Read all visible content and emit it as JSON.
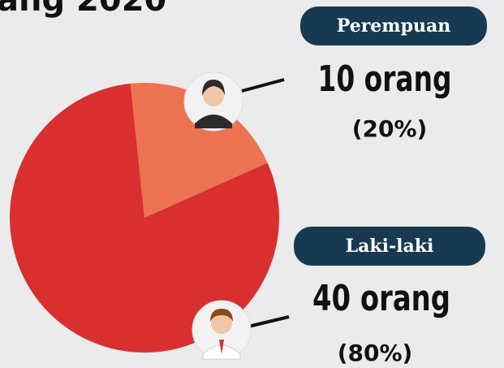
{
  "chart_data": {
    "type": "pie",
    "title": "ang 2020",
    "categories": [
      "Perempuan",
      "Laki-laki"
    ],
    "values": [
      20,
      80
    ],
    "value_labels": [
      "(20%)",
      "(80%)"
    ],
    "counts": [
      10,
      40
    ],
    "count_labels": [
      "10 orang",
      "40 orang"
    ],
    "colors": [
      "#ec7352",
      "#d92f2f"
    ]
  }
}
